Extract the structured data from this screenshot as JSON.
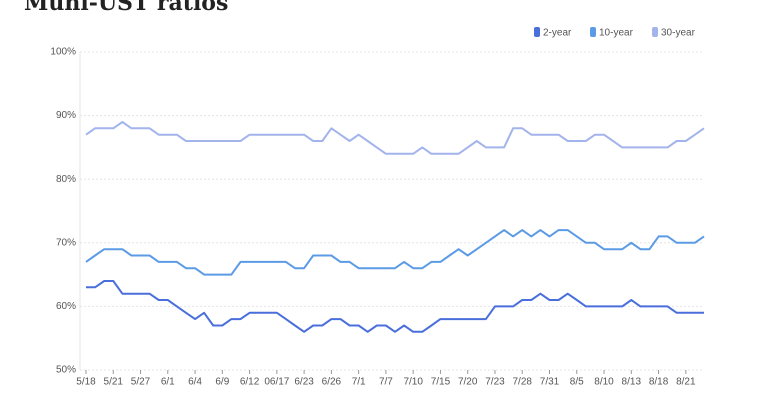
{
  "chart_data": {
    "type": "line",
    "title": "Muni-UST ratios",
    "categories": [
      "5/18",
      null,
      null,
      "5/21",
      null,
      null,
      "5/27",
      null,
      null,
      "6/1",
      null,
      null,
      "6/4",
      null,
      null,
      "6/9",
      null,
      null,
      "6/12",
      null,
      null,
      "06/17",
      null,
      null,
      "6/23",
      null,
      null,
      "6/26",
      null,
      null,
      "7/1",
      null,
      null,
      "7/7",
      null,
      null,
      "7/10",
      null,
      null,
      "7/15",
      null,
      null,
      "7/20",
      null,
      null,
      "7/23",
      null,
      null,
      "7/28",
      null,
      null,
      "7/31",
      null,
      null,
      "8/5",
      null,
      null,
      "8/10",
      null,
      null,
      "8/13",
      null,
      null,
      "8/18",
      null,
      null,
      "8/21",
      null,
      null
    ],
    "series": [
      {
        "name": "2-year",
        "color": "#4a6fdc",
        "values": [
          63,
          63,
          64,
          64,
          62,
          62,
          62,
          62,
          61,
          61,
          60,
          59,
          58,
          59,
          57,
          57,
          58,
          58,
          59,
          59,
          59,
          59,
          58,
          57,
          56,
          57,
          57,
          58,
          58,
          57,
          57,
          56,
          57,
          57,
          56,
          57,
          56,
          56,
          57,
          58,
          58,
          58,
          58,
          58,
          58,
          60,
          60,
          60,
          61,
          61,
          62,
          61,
          61,
          62,
          61,
          60,
          60,
          60,
          60,
          60,
          61,
          60,
          60,
          60,
          60,
          59,
          59,
          59,
          59
        ]
      },
      {
        "name": "10-year",
        "color": "#5b9be6",
        "values": [
          67,
          68,
          69,
          69,
          69,
          68,
          68,
          68,
          67,
          67,
          67,
          66,
          66,
          65,
          65,
          65,
          65,
          67,
          67,
          67,
          67,
          67,
          67,
          66,
          66,
          68,
          68,
          68,
          67,
          67,
          66,
          66,
          66,
          66,
          66,
          67,
          66,
          66,
          67,
          67,
          68,
          69,
          68,
          69,
          70,
          71,
          72,
          71,
          72,
          71,
          72,
          71,
          72,
          72,
          71,
          70,
          70,
          69,
          69,
          69,
          70,
          69,
          69,
          71,
          71,
          70,
          70,
          70,
          71
        ]
      },
      {
        "name": "30-year",
        "color": "#a3b4ec",
        "values": [
          87,
          88,
          88,
          88,
          89,
          88,
          88,
          88,
          87,
          87,
          87,
          86,
          86,
          86,
          86,
          86,
          86,
          86,
          87,
          87,
          87,
          87,
          87,
          87,
          87,
          86,
          86,
          88,
          87,
          86,
          87,
          86,
          85,
          84,
          84,
          84,
          84,
          85,
          84,
          84,
          84,
          84,
          85,
          86,
          85,
          85,
          85,
          88,
          88,
          87,
          87,
          87,
          87,
          86,
          86,
          86,
          87,
          87,
          86,
          85,
          85,
          85,
          85,
          85,
          85,
          86,
          86,
          87,
          88
        ]
      }
    ],
    "ylim": [
      50,
      100
    ],
    "yticks": [
      {
        "value": 50,
        "label": "50%"
      },
      {
        "value": 60,
        "label": "60%"
      },
      {
        "value": 70,
        "label": "70%"
      },
      {
        "value": 80,
        "label": "80%"
      },
      {
        "value": 90,
        "label": "90%"
      },
      {
        "value": 100,
        "label": "100%"
      }
    ],
    "grid": true,
    "legend": "top-right"
  }
}
